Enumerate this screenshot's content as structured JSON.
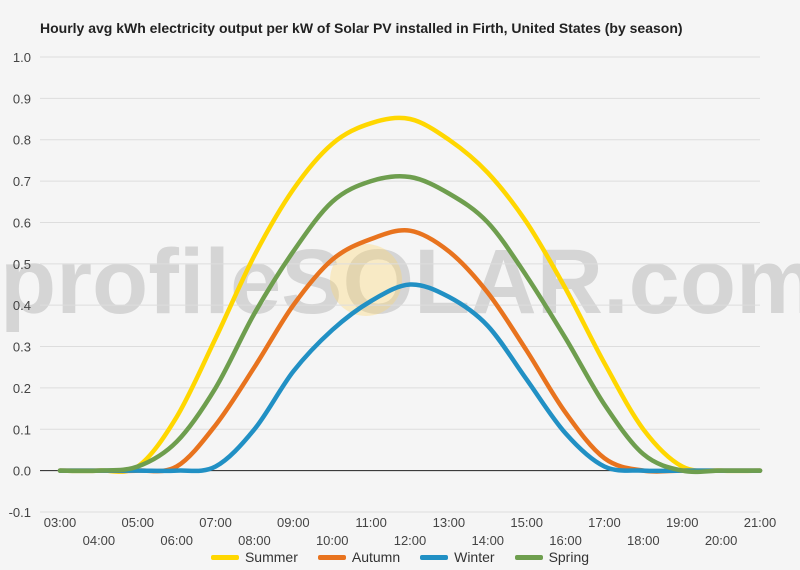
{
  "page": {
    "title": "Hourly avg kWh electricity output per kW of Solar PV installed in Firth, United States (by season)",
    "watermark": "profileSOLAR.com"
  },
  "colors": {
    "summer": "#ffd700",
    "autumn": "#e8731e",
    "winter": "#2190c4",
    "spring": "#6e9e4e",
    "grid": "#dddddd",
    "axis": "#222222"
  },
  "chart_data": {
    "type": "line",
    "title": "Hourly avg kWh electricity output per kW of Solar PV installed in Firth, United States (by season)",
    "xlabel": "",
    "ylabel": "",
    "ylim": [
      -0.1,
      1.0
    ],
    "yticks": [
      "1.0",
      "0.9",
      "0.8",
      "0.7",
      "0.6",
      "0.5",
      "0.4",
      "0.3",
      "0.2",
      "0.1",
      "0.0",
      "-0.1"
    ],
    "grid": true,
    "legend": "bottom",
    "x": [
      "03:00",
      "04:00",
      "05:00",
      "06:00",
      "07:00",
      "08:00",
      "09:00",
      "10:00",
      "11:00",
      "12:00",
      "13:00",
      "14:00",
      "15:00",
      "16:00",
      "17:00",
      "18:00",
      "19:00",
      "20:00",
      "21:00"
    ],
    "series": [
      {
        "name": "Summer",
        "values": [
          0.0,
          0.0,
          0.01,
          0.13,
          0.32,
          0.52,
          0.68,
          0.79,
          0.84,
          0.85,
          0.8,
          0.72,
          0.6,
          0.44,
          0.26,
          0.1,
          0.01,
          0.0,
          0.0
        ]
      },
      {
        "name": "Autumn",
        "values": [
          0.0,
          0.0,
          0.0,
          0.01,
          0.11,
          0.25,
          0.4,
          0.51,
          0.56,
          0.58,
          0.53,
          0.43,
          0.29,
          0.14,
          0.03,
          0.0,
          0.0,
          0.0,
          0.0
        ]
      },
      {
        "name": "Winter",
        "values": [
          0.0,
          0.0,
          0.0,
          0.0,
          0.01,
          0.1,
          0.24,
          0.34,
          0.41,
          0.45,
          0.42,
          0.35,
          0.22,
          0.09,
          0.01,
          0.0,
          0.0,
          0.0,
          0.0
        ]
      },
      {
        "name": "Spring",
        "values": [
          0.0,
          0.0,
          0.01,
          0.07,
          0.2,
          0.38,
          0.53,
          0.65,
          0.7,
          0.71,
          0.67,
          0.6,
          0.47,
          0.32,
          0.16,
          0.04,
          0.0,
          0.0,
          0.0
        ]
      }
    ]
  }
}
